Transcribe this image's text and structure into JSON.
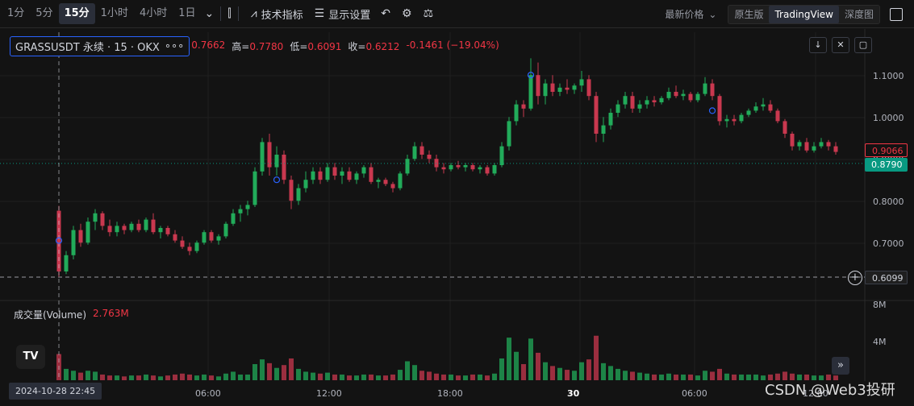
{
  "toolbar": {
    "timeframes": [
      "1分",
      "5分",
      "15分",
      "1小时",
      "4小时",
      "1日"
    ],
    "active_timeframe": "15分",
    "indicators_label": "技术指标",
    "display_label": "显示设置",
    "price_mode_label": "最新价格",
    "chart_types": [
      "原生版",
      "TradingView",
      "深度图"
    ],
    "active_chart_type": "TradingView"
  },
  "legend": {
    "symbol": "GRASSUSDT 永续 · 15 · OKX",
    "more": "∘∘∘",
    "open_value": "0.7662",
    "high_label": "高=",
    "high_value": "0.7780",
    "low_label": "低=",
    "low_value": "0.6091",
    "close_label": "收=",
    "close_value": "0.6212",
    "change_value": "-0.1461 (−19.04%)"
  },
  "volume_legend": {
    "label": "成交量(Volume)",
    "value": "2.763M"
  },
  "price_axis": {
    "ticks": [
      "1.1000",
      "1.0000",
      "0.9000",
      "0.8000",
      "0.7000"
    ],
    "current_price": "0.9066",
    "last_price": "0.8790",
    "crosshair_price": "0.6099"
  },
  "volume_axis": {
    "ticks": [
      "8M",
      "4M"
    ]
  },
  "time_axis": {
    "ticks": [
      "06:00",
      "12:00",
      "18:00",
      "30",
      "06:00",
      "12:00"
    ],
    "crosshair_time": "2024-10-28   22:45"
  },
  "logo_text": "TV",
  "watermark": "CSDN @Web3投研",
  "colors": {
    "up": "#089981",
    "down": "#f23645",
    "up_candle": "#22ab5a",
    "down_candle": "#c9384f",
    "background": "#131313"
  },
  "chart_data": {
    "type": "candlestick",
    "ylim": [
      0.57,
      1.16
    ],
    "ohlc": [
      [
        0.7662,
        0.778,
        0.6091,
        0.6212
      ],
      [
        0.6212,
        0.67,
        0.615,
        0.66
      ],
      [
        0.66,
        0.73,
        0.65,
        0.72
      ],
      [
        0.72,
        0.735,
        0.68,
        0.69
      ],
      [
        0.69,
        0.75,
        0.685,
        0.74
      ],
      [
        0.74,
        0.77,
        0.72,
        0.76
      ],
      [
        0.76,
        0.765,
        0.72,
        0.73
      ],
      [
        0.73,
        0.745,
        0.705,
        0.715
      ],
      [
        0.715,
        0.74,
        0.705,
        0.73
      ],
      [
        0.73,
        0.735,
        0.71,
        0.72
      ],
      [
        0.72,
        0.74,
        0.715,
        0.735
      ],
      [
        0.735,
        0.745,
        0.715,
        0.72
      ],
      [
        0.72,
        0.75,
        0.715,
        0.745
      ],
      [
        0.745,
        0.76,
        0.71,
        0.715
      ],
      [
        0.715,
        0.73,
        0.7,
        0.725
      ],
      [
        0.725,
        0.73,
        0.705,
        0.71
      ],
      [
        0.71,
        0.72,
        0.69,
        0.695
      ],
      [
        0.695,
        0.705,
        0.675,
        0.68
      ],
      [
        0.68,
        0.69,
        0.66,
        0.67
      ],
      [
        0.67,
        0.695,
        0.665,
        0.69
      ],
      [
        0.69,
        0.72,
        0.685,
        0.715
      ],
      [
        0.715,
        0.72,
        0.69,
        0.695
      ],
      [
        0.695,
        0.71,
        0.685,
        0.705
      ],
      [
        0.705,
        0.74,
        0.7,
        0.735
      ],
      [
        0.735,
        0.77,
        0.73,
        0.76
      ],
      [
        0.76,
        0.78,
        0.74,
        0.77
      ],
      [
        0.77,
        0.79,
        0.755,
        0.78
      ],
      [
        0.78,
        0.87,
        0.775,
        0.86
      ],
      [
        0.86,
        0.94,
        0.85,
        0.93
      ],
      [
        0.93,
        0.95,
        0.85,
        0.87
      ],
      [
        0.87,
        0.92,
        0.85,
        0.9
      ],
      [
        0.9,
        0.91,
        0.83,
        0.84
      ],
      [
        0.84,
        0.85,
        0.77,
        0.79
      ],
      [
        0.79,
        0.83,
        0.78,
        0.82
      ],
      [
        0.82,
        0.86,
        0.81,
        0.84
      ],
      [
        0.84,
        0.87,
        0.83,
        0.86
      ],
      [
        0.86,
        0.87,
        0.83,
        0.84
      ],
      [
        0.84,
        0.88,
        0.835,
        0.87
      ],
      [
        0.87,
        0.88,
        0.84,
        0.85
      ],
      [
        0.85,
        0.87,
        0.83,
        0.86
      ],
      [
        0.86,
        0.87,
        0.835,
        0.84
      ],
      [
        0.84,
        0.86,
        0.83,
        0.855
      ],
      [
        0.855,
        0.875,
        0.845,
        0.87
      ],
      [
        0.87,
        0.88,
        0.83,
        0.835
      ],
      [
        0.835,
        0.845,
        0.82,
        0.84
      ],
      [
        0.84,
        0.845,
        0.825,
        0.83
      ],
      [
        0.83,
        0.835,
        0.81,
        0.82
      ],
      [
        0.82,
        0.86,
        0.815,
        0.855
      ],
      [
        0.855,
        0.9,
        0.85,
        0.89
      ],
      [
        0.89,
        0.93,
        0.885,
        0.92
      ],
      [
        0.92,
        0.93,
        0.89,
        0.9
      ],
      [
        0.9,
        0.91,
        0.88,
        0.89
      ],
      [
        0.89,
        0.9,
        0.86,
        0.87
      ],
      [
        0.87,
        0.88,
        0.855,
        0.865
      ],
      [
        0.865,
        0.88,
        0.86,
        0.875
      ],
      [
        0.875,
        0.885,
        0.865,
        0.87
      ],
      [
        0.87,
        0.88,
        0.86,
        0.875
      ],
      [
        0.875,
        0.88,
        0.86,
        0.865
      ],
      [
        0.865,
        0.875,
        0.855,
        0.87
      ],
      [
        0.87,
        0.875,
        0.85,
        0.855
      ],
      [
        0.855,
        0.88,
        0.85,
        0.875
      ],
      [
        0.875,
        0.93,
        0.87,
        0.92
      ],
      [
        0.92,
        0.99,
        0.91,
        0.98
      ],
      [
        0.98,
        1.03,
        0.97,
        1.02
      ],
      [
        1.02,
        1.03,
        0.99,
        1.01
      ],
      [
        1.01,
        1.13,
        1.005,
        1.09
      ],
      [
        1.09,
        1.12,
        1.02,
        1.04
      ],
      [
        1.04,
        1.08,
        1.02,
        1.07
      ],
      [
        1.07,
        1.09,
        1.04,
        1.05
      ],
      [
        1.05,
        1.07,
        1.04,
        1.06
      ],
      [
        1.06,
        1.08,
        1.045,
        1.055
      ],
      [
        1.055,
        1.07,
        1.045,
        1.065
      ],
      [
        1.065,
        1.1,
        1.05,
        1.08
      ],
      [
        1.08,
        1.09,
        1.03,
        1.04
      ],
      [
        1.04,
        1.05,
        0.93,
        0.95
      ],
      [
        0.95,
        0.99,
        0.93,
        0.97
      ],
      [
        0.97,
        1.01,
        0.96,
        1.0
      ],
      [
        1.0,
        1.03,
        0.99,
        1.02
      ],
      [
        1.02,
        1.05,
        1.01,
        1.04
      ],
      [
        1.04,
        1.05,
        1.0,
        1.01
      ],
      [
        1.01,
        1.03,
        1.0,
        1.02
      ],
      [
        1.02,
        1.04,
        1.01,
        1.03
      ],
      [
        1.03,
        1.04,
        1.015,
        1.025
      ],
      [
        1.025,
        1.04,
        1.02,
        1.035
      ],
      [
        1.035,
        1.06,
        1.03,
        1.05
      ],
      [
        1.05,
        1.065,
        1.035,
        1.04
      ],
      [
        1.04,
        1.055,
        1.03,
        1.045
      ],
      [
        1.045,
        1.05,
        1.025,
        1.03
      ],
      [
        1.03,
        1.05,
        1.025,
        1.045
      ],
      [
        1.045,
        1.085,
        1.04,
        1.07
      ],
      [
        1.07,
        1.08,
        1.03,
        1.04
      ],
      [
        1.04,
        1.045,
        0.97,
        0.98
      ],
      [
        0.98,
        0.995,
        0.965,
        0.985
      ],
      [
        0.985,
        0.995,
        0.97,
        0.98
      ],
      [
        0.98,
        1.0,
        0.975,
        0.995
      ],
      [
        0.995,
        1.01,
        0.99,
        1.005
      ],
      [
        1.005,
        1.025,
        1.0,
        1.015
      ],
      [
        1.015,
        1.035,
        1.005,
        1.02
      ],
      [
        1.02,
        1.03,
        1.0,
        1.005
      ],
      [
        1.005,
        1.01,
        0.975,
        0.98
      ],
      [
        0.98,
        0.985,
        0.94,
        0.95
      ],
      [
        0.95,
        0.955,
        0.91,
        0.92
      ],
      [
        0.92,
        0.935,
        0.91,
        0.93
      ],
      [
        0.93,
        0.94,
        0.905,
        0.91
      ],
      [
        0.91,
        0.93,
        0.905,
        0.92
      ],
      [
        0.92,
        0.94,
        0.915,
        0.93
      ],
      [
        0.93,
        0.935,
        0.91,
        0.92
      ],
      [
        0.92,
        0.93,
        0.9,
        0.9066
      ]
    ],
    "volume": [
      2.763,
      1.2,
      1.0,
      0.8,
      1.0,
      0.9,
      0.6,
      0.5,
      0.5,
      0.4,
      0.5,
      0.5,
      0.6,
      0.5,
      0.4,
      0.5,
      0.6,
      0.7,
      0.6,
      0.5,
      0.6,
      0.5,
      0.4,
      0.7,
      0.9,
      0.6,
      0.6,
      1.7,
      2.2,
      1.8,
      1.3,
      1.6,
      2.3,
      1.2,
      0.9,
      0.8,
      0.7,
      0.8,
      0.6,
      0.6,
      0.5,
      0.5,
      0.6,
      0.6,
      0.5,
      0.5,
      0.6,
      1.1,
      2.0,
      1.6,
      1.0,
      0.9,
      0.7,
      0.6,
      0.6,
      0.5,
      0.5,
      0.6,
      0.6,
      0.5,
      0.7,
      2.3,
      4.5,
      3.0,
      1.7,
      4.4,
      2.9,
      1.9,
      1.5,
      1.3,
      1.1,
      1.0,
      1.9,
      2.2,
      4.7,
      1.8,
      1.5,
      1.2,
      1.0,
      0.9,
      0.8,
      0.7,
      0.6,
      0.6,
      0.7,
      0.6,
      0.6,
      0.6,
      0.5,
      1.0,
      0.9,
      1.2,
      0.7,
      0.6,
      0.6,
      0.6,
      0.6,
      0.5,
      0.6,
      0.7,
      0.9,
      0.7,
      0.6,
      0.6,
      0.5,
      0.5,
      0.6,
      0.5,
      0.4
    ],
    "ylim_volume": [
      0,
      8
    ]
  }
}
